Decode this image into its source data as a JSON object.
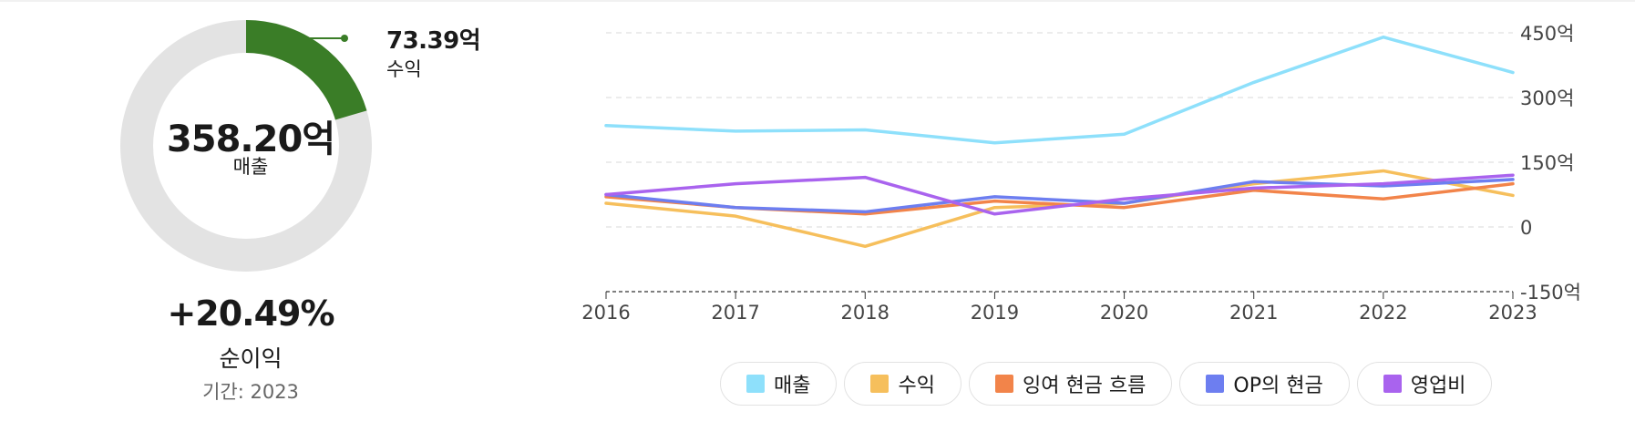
{
  "summary": {
    "center_value": "358.20억",
    "center_label": "매출",
    "callout_value": "73.39억",
    "callout_label": "수익",
    "change": "+20.49%",
    "metric_label": "순이익",
    "period_label": "기간:",
    "period_value": "2023",
    "donut_fraction": 0.2049,
    "donut_colors": {
      "filled": "#3a7d27",
      "track": "#e3e3e3"
    }
  },
  "chart_data": {
    "type": "line",
    "x": [
      "2016",
      "2017",
      "2018",
      "2019",
      "2020",
      "2021",
      "2022",
      "2023"
    ],
    "ylim": [
      -150,
      450
    ],
    "yticks": [
      -150,
      0,
      150,
      300,
      450
    ],
    "ytick_labels": [
      "-150억",
      "0",
      "150억",
      "300억",
      "450억"
    ],
    "grid": true,
    "legend_position": "bottom",
    "series": [
      {
        "name": "매출",
        "color": "#8ee0fb",
        "values": [
          235,
          222,
          225,
          195,
          215,
          335,
          440,
          358
        ]
      },
      {
        "name": "수익",
        "color": "#f6bf5c",
        "values": [
          55,
          25,
          -45,
          45,
          55,
          100,
          130,
          73
        ]
      },
      {
        "name": "잉여 현금 흐름",
        "color": "#f2844a",
        "values": [
          70,
          45,
          30,
          60,
          45,
          85,
          65,
          100
        ]
      },
      {
        "name": "OP의 현금",
        "color": "#6d7ef0",
        "values": [
          75,
          45,
          35,
          70,
          55,
          105,
          95,
          110
        ]
      },
      {
        "name": "영업비",
        "color": "#a963ee",
        "values": [
          75,
          100,
          115,
          30,
          65,
          90,
          100,
          120
        ]
      }
    ]
  }
}
